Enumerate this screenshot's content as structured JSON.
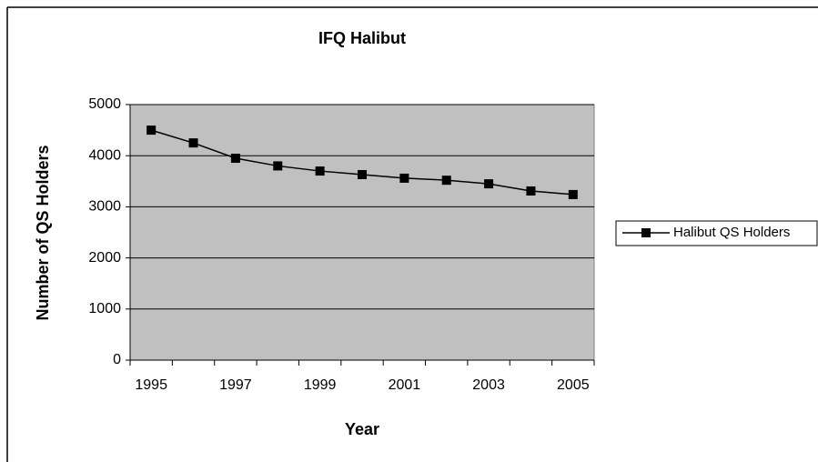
{
  "chart_data": {
    "type": "line",
    "title": "IFQ Halibut",
    "x_label": "Year",
    "y_label": "Number of QS Holders",
    "categories": [
      "1995",
      null,
      "1997",
      null,
      "1999",
      null,
      "2001",
      null,
      "2003",
      null,
      "2005"
    ],
    "series": [
      {
        "name": "Halibut QS Holders",
        "color": "#000000",
        "values": [
          4500,
          4250,
          3950,
          3800,
          3700,
          3630,
          3560,
          3520,
          3450,
          3310,
          3240
        ]
      }
    ],
    "ylim": [
      0,
      5000
    ],
    "yticks": [
      0,
      1000,
      2000,
      3000,
      4000,
      5000
    ],
    "grid": true,
    "plot_background": "#c0c0c0",
    "legend": "right"
  }
}
